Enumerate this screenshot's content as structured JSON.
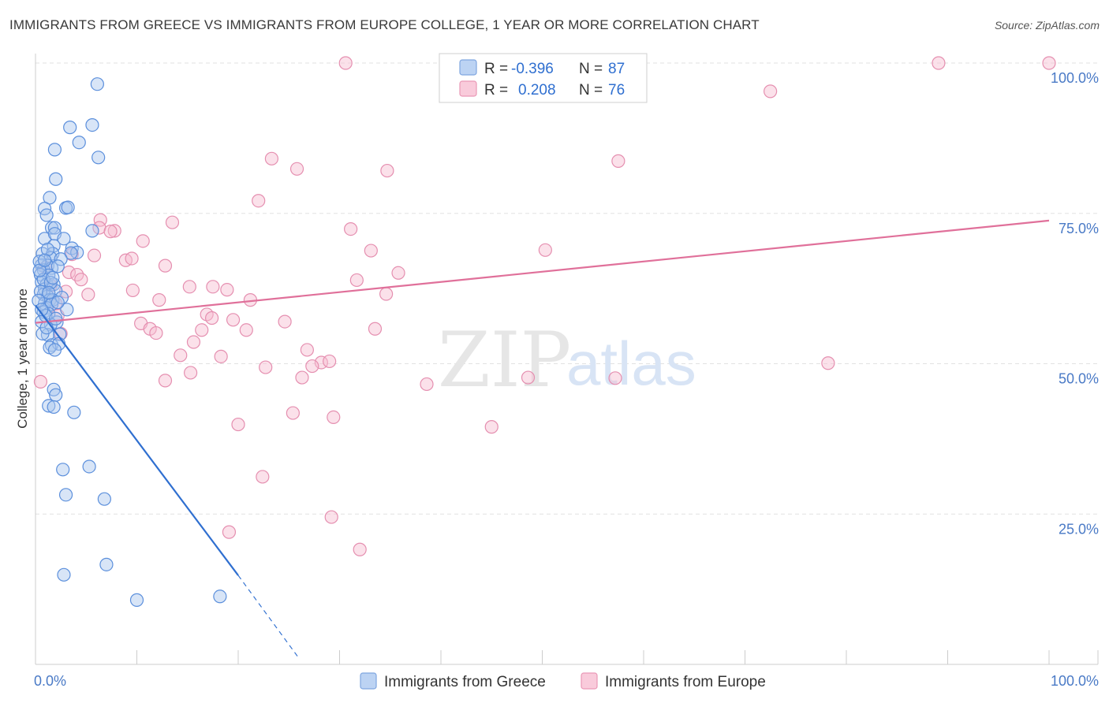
{
  "title": "IMMIGRANTS FROM GREECE VS IMMIGRANTS FROM EUROPE COLLEGE, 1 YEAR OR MORE CORRELATION CHART",
  "source": "Source: ZipAtlas.com",
  "watermark": {
    "zip": "ZIP",
    "atlas": "atlas"
  },
  "colors": {
    "greece": "#2f6fd0",
    "greece_fill": "#a9c6ee",
    "europe": "#e0709a",
    "europe_fill": "#f6bdd0",
    "grid": "#e2e2e2",
    "tick_text": "#4a7ac6"
  },
  "legend": {
    "greece": {
      "r_label": "R =",
      "r_value": "-0.396",
      "n_label": "N =",
      "n_value": "87"
    },
    "europe": {
      "r_label": "R =",
      "r_value": "0.208",
      "n_label": "N =",
      "n_value": "76"
    }
  },
  "bottom_legend": [
    "Immigrants from Greece",
    "Immigrants from Europe"
  ],
  "chart_data": {
    "type": "scatter",
    "title": "IMMIGRANTS FROM GREECE VS IMMIGRANTS FROM EUROPE COLLEGE, 1 YEAR OR MORE CORRELATION CHART",
    "xlabel": "",
    "ylabel": "College, 1 year or more",
    "xlim": [
      0,
      100
    ],
    "ylim": [
      0,
      100
    ],
    "x_tick_labels": [
      "0.0%",
      "100.0%"
    ],
    "y_ticks": [
      25,
      50,
      75,
      100
    ],
    "y_tick_labels": [
      "25.0%",
      "50.0%",
      "75.0%",
      "100.0%"
    ],
    "grid": true,
    "legend_position": "top-center",
    "series": [
      {
        "name": "Immigrants from Greece",
        "color": "#2f6fd0",
        "r": -0.396,
        "n": 87,
        "trendline": {
          "x": [
            0,
            20
          ],
          "y": [
            59.7,
            14.8
          ],
          "dashed_to": [
            26,
            1.0
          ]
        },
        "points": [
          [
            6.1,
            96.5
          ],
          [
            3.4,
            89.3
          ],
          [
            5.6,
            89.7
          ],
          [
            4.3,
            86.8
          ],
          [
            1.9,
            85.6
          ],
          [
            6.2,
            84.3
          ],
          [
            2.0,
            80.7
          ],
          [
            1.4,
            77.6
          ],
          [
            0.9,
            75.8
          ],
          [
            3.0,
            75.9
          ],
          [
            3.2,
            76.0
          ],
          [
            1.1,
            74.7
          ],
          [
            1.6,
            72.6
          ],
          [
            1.9,
            72.6
          ],
          [
            5.6,
            72.1
          ],
          [
            0.9,
            70.8
          ],
          [
            1.9,
            71.6
          ],
          [
            2.8,
            70.8
          ],
          [
            1.8,
            69.6
          ],
          [
            3.6,
            69.2
          ],
          [
            4.1,
            68.5
          ],
          [
            0.7,
            68.3
          ],
          [
            1.7,
            68.3
          ],
          [
            3.5,
            68.4
          ],
          [
            1.5,
            67.6
          ],
          [
            2.5,
            67.4
          ],
          [
            0.6,
            66.4
          ],
          [
            1.2,
            66.3
          ],
          [
            0.8,
            65.6
          ],
          [
            1.6,
            65.9
          ],
          [
            2.2,
            66.2
          ],
          [
            0.5,
            64.8
          ],
          [
            1.3,
            64.7
          ],
          [
            0.6,
            63.6
          ],
          [
            1.1,
            63.2
          ],
          [
            0.9,
            62.4
          ],
          [
            1.8,
            63.2
          ],
          [
            2.0,
            62.1
          ],
          [
            0.8,
            61.5
          ],
          [
            1.2,
            61.2
          ],
          [
            1.4,
            60.6
          ],
          [
            1.7,
            60.6
          ],
          [
            0.9,
            60.0
          ],
          [
            1.1,
            59.3
          ],
          [
            1.6,
            59.9
          ],
          [
            3.1,
            59.0
          ],
          [
            0.8,
            58.6
          ],
          [
            1.3,
            58.3
          ],
          [
            2.1,
            56.9
          ],
          [
            1.5,
            56.5
          ],
          [
            1.2,
            54.8
          ],
          [
            2.4,
            54.9
          ],
          [
            1.6,
            53.1
          ],
          [
            2.3,
            53.3
          ],
          [
            1.4,
            52.7
          ],
          [
            1.9,
            52.3
          ],
          [
            1.8,
            45.7
          ],
          [
            2.0,
            44.8
          ],
          [
            1.3,
            43.0
          ],
          [
            1.8,
            42.8
          ],
          [
            3.8,
            41.9
          ],
          [
            2.7,
            32.4
          ],
          [
            5.3,
            32.9
          ],
          [
            3.0,
            28.2
          ],
          [
            6.8,
            27.5
          ],
          [
            7.0,
            16.6
          ],
          [
            2.8,
            14.9
          ],
          [
            10.0,
            10.7
          ],
          [
            18.2,
            11.3
          ],
          [
            0.4,
            67.0
          ],
          [
            0.5,
            62.0
          ],
          [
            0.6,
            57.0
          ],
          [
            0.7,
            55.0
          ],
          [
            0.8,
            64.0
          ],
          [
            1.0,
            58.0
          ],
          [
            1.2,
            69.0
          ],
          [
            1.5,
            63.5
          ],
          [
            2.6,
            61.0
          ],
          [
            0.3,
            60.5
          ],
          [
            0.4,
            65.5
          ],
          [
            1.7,
            64.3
          ],
          [
            2.2,
            60.2
          ],
          [
            0.9,
            67.2
          ],
          [
            1.3,
            61.8
          ],
          [
            0.6,
            59.0
          ],
          [
            1.1,
            56.0
          ],
          [
            2.0,
            57.5
          ]
        ]
      },
      {
        "name": "Immigrants from Europe",
        "color": "#e0709a",
        "r": 0.208,
        "n": 76,
        "trendline": {
          "x": [
            0,
            100
          ],
          "y": [
            56.8,
            73.8
          ]
        },
        "points": [
          [
            30.6,
            100.0
          ],
          [
            89.1,
            100.0
          ],
          [
            100.0,
            100.0
          ],
          [
            72.5,
            95.3
          ],
          [
            23.3,
            84.1
          ],
          [
            57.5,
            83.7
          ],
          [
            25.8,
            82.4
          ],
          [
            34.7,
            82.1
          ],
          [
            22.0,
            77.1
          ],
          [
            13.5,
            73.5
          ],
          [
            6.4,
            73.9
          ],
          [
            7.8,
            72.1
          ],
          [
            6.3,
            72.6
          ],
          [
            31.1,
            72.4
          ],
          [
            7.4,
            72.0
          ],
          [
            10.6,
            70.4
          ],
          [
            33.1,
            68.8
          ],
          [
            50.3,
            68.9
          ],
          [
            3.6,
            68.2
          ],
          [
            5.8,
            68.0
          ],
          [
            8.9,
            67.2
          ],
          [
            9.5,
            67.5
          ],
          [
            12.8,
            66.3
          ],
          [
            3.3,
            65.2
          ],
          [
            35.8,
            65.1
          ],
          [
            4.1,
            64.8
          ],
          [
            31.7,
            63.9
          ],
          [
            15.2,
            62.8
          ],
          [
            17.5,
            62.8
          ],
          [
            9.6,
            62.2
          ],
          [
            18.9,
            62.3
          ],
          [
            5.2,
            61.5
          ],
          [
            34.6,
            61.6
          ],
          [
            12.2,
            60.6
          ],
          [
            21.2,
            60.6
          ],
          [
            16.9,
            58.2
          ],
          [
            17.4,
            57.6
          ],
          [
            19.5,
            57.3
          ],
          [
            24.6,
            57.0
          ],
          [
            10.4,
            56.7
          ],
          [
            11.3,
            55.8
          ],
          [
            16.4,
            55.6
          ],
          [
            20.8,
            55.6
          ],
          [
            33.5,
            55.8
          ],
          [
            11.9,
            55.1
          ],
          [
            15.6,
            53.6
          ],
          [
            26.8,
            52.3
          ],
          [
            14.3,
            51.4
          ],
          [
            18.3,
            51.2
          ],
          [
            28.2,
            50.2
          ],
          [
            29.0,
            50.4
          ],
          [
            78.2,
            50.1
          ],
          [
            22.7,
            49.4
          ],
          [
            27.3,
            49.6
          ],
          [
            15.3,
            48.5
          ],
          [
            26.3,
            47.7
          ],
          [
            48.6,
            47.7
          ],
          [
            57.2,
            47.6
          ],
          [
            12.8,
            47.2
          ],
          [
            38.6,
            46.6
          ],
          [
            25.4,
            41.8
          ],
          [
            29.4,
            41.1
          ],
          [
            20.0,
            39.9
          ],
          [
            45.0,
            39.5
          ],
          [
            22.4,
            31.2
          ],
          [
            29.2,
            24.5
          ],
          [
            19.1,
            22.0
          ],
          [
            32.0,
            19.1
          ],
          [
            0.5,
            47.0
          ],
          [
            2.0,
            60.0
          ],
          [
            1.5,
            63.0
          ],
          [
            4.5,
            64.0
          ],
          [
            2.5,
            55.0
          ],
          [
            3.0,
            62.0
          ],
          [
            1.0,
            66.0
          ],
          [
            2.2,
            58.0
          ]
        ]
      }
    ]
  }
}
